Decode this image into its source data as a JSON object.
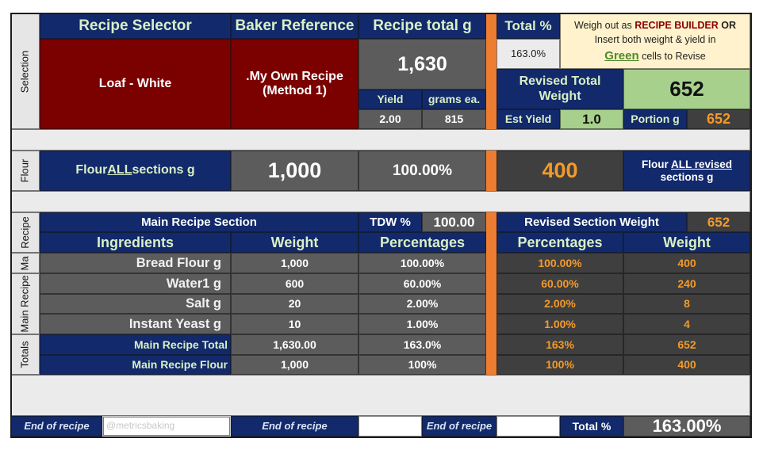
{
  "header": {
    "recipe_selector": "Recipe Selector",
    "baker_reference": "Baker Reference",
    "recipe_total_g": "Recipe total g",
    "total_pct_label": "Total %",
    "note_pre": "Weigh out as ",
    "note_bold": "RECIPE BUILDER",
    "note_or": " OR",
    "note_line2": "Insert both weight & yield in",
    "note_green": "Green",
    "note_post": " cells to Revise"
  },
  "selection": {
    "side_label": "Selection",
    "recipe": "Loaf - White",
    "reference": ".My Own Recipe (Method 1)",
    "total_g": "1,630",
    "total_pct": "163.0%",
    "yield_label": "Yield",
    "grams_label": "grams ea.",
    "yield": "2.00",
    "grams": "815",
    "revised_label": "Revised Total Weight",
    "revised_value": "652",
    "est_yield_label": "Est Yield",
    "est_yield": "1.0",
    "portion_label": "Portion g",
    "portion": "652"
  },
  "flour": {
    "side_label": "Flour",
    "label_pre": "Flour ",
    "label_u": "ALL ",
    "label_post": "sections g",
    "value": "1,000",
    "pct": "100.00%",
    "revised": "400",
    "revised_label_pre": "Flour ",
    "revised_label_u": "ALL revised ",
    "revised_label_post": "sections g"
  },
  "main": {
    "side_label_recipe": "Recipe",
    "side_label_ma": "Ma",
    "side_label_main": "Main Recipe",
    "side_label_totals": "Totals",
    "section_title": "Main Recipe Section",
    "tdw_label": "TDW %",
    "tdw_value": "100.00",
    "revised_section_label": "Revised Section Weight",
    "revised_section_value": "652",
    "headers": {
      "ingredients": "Ingredients",
      "weight": "Weight",
      "percentages": "Percentages",
      "rev_percentages": "Percentages",
      "rev_weight": "Weight"
    },
    "rows": [
      {
        "name": "Bread Flour g",
        "weight": "1,000",
        "pct": "100.00%",
        "rev_pct": "100.00%",
        "rev_weight": "400"
      },
      {
        "name": "Water1 g",
        "weight": "600",
        "pct": "60.00%",
        "rev_pct": "60.00%",
        "rev_weight": "240"
      },
      {
        "name": "Salt g",
        "weight": "20",
        "pct": "2.00%",
        "rev_pct": "2.00%",
        "rev_weight": "8"
      },
      {
        "name": "Instant Yeast g",
        "weight": "10",
        "pct": "1.00%",
        "rev_pct": "1.00%",
        "rev_weight": "4"
      }
    ],
    "totals": [
      {
        "name": "Main Recipe Total",
        "weight": "1,630.00",
        "pct": "163.0%",
        "rev_pct": "163%",
        "rev_weight": "652"
      },
      {
        "name": "Main Recipe Flour",
        "weight": "1,000",
        "pct": "100%",
        "rev_pct": "100%",
        "rev_weight": "400"
      }
    ]
  },
  "footer": {
    "end1": "End of recipe",
    "watermark": "@metricsbaking",
    "end2": "End of recipe",
    "end3": "End of recipe",
    "total_pct_label": "Total %",
    "total_pct_value": "163.00%"
  }
}
